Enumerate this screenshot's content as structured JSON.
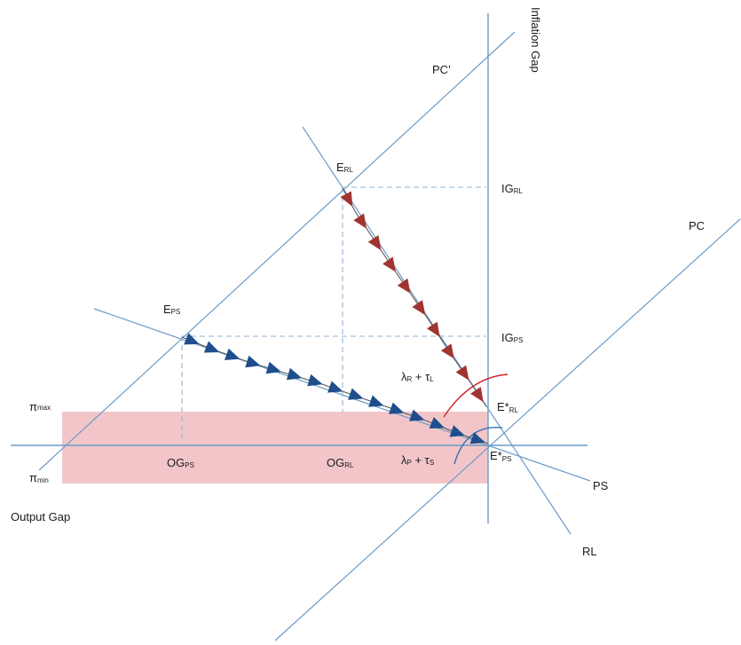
{
  "axes": {
    "vertical_label": "Inflation Gap",
    "horizontal_label": "Output Gap"
  },
  "curves": {
    "pc": "PC",
    "pc_prime": "PC’",
    "ps": "PS",
    "rl": "RL"
  },
  "points": {
    "e_rl": {
      "main": "E",
      "sub": "RL"
    },
    "e_ps": {
      "main": "E",
      "sub": "PS"
    },
    "e_star_rl": {
      "main": "E*",
      "sub": "RL"
    },
    "e_star_ps": {
      "main": "E*",
      "sub": "PS"
    }
  },
  "ticks": {
    "ig_rl": {
      "main": "IG",
      "sub": "RL"
    },
    "ig_ps": {
      "main": "IG",
      "sub": "PS"
    },
    "og_ps": {
      "main": "OG",
      "sub": "PS"
    },
    "og_rl": {
      "main": "OG",
      "sub": "RL"
    },
    "pi_max": {
      "main": "π",
      "sub": "max"
    },
    "pi_min": {
      "main": "π",
      "sub": "min"
    }
  },
  "speed_labels": {
    "rl": {
      "a": "λ",
      "a_sub": "R",
      "plus": " + ",
      "b": "τ",
      "b_sub": "L"
    },
    "ps": {
      "a": "λ",
      "a_sub": "P",
      "plus": " + ",
      "b": "τ",
      "b_sub": "S"
    }
  },
  "colors": {
    "axis": "#6b9bc9",
    "band": "#f2c6c9",
    "rl_arrow": "#a03430",
    "ps_arrow": "#1f4e8c",
    "dashed": "#8fb3d6",
    "arc_rl": "#cc2222",
    "arc_ps": "#3b6fb0"
  }
}
